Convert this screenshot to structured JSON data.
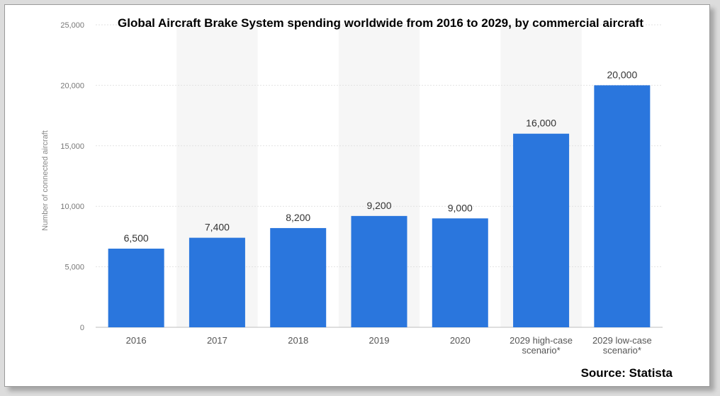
{
  "chart_data": {
    "type": "bar",
    "title": "Global Aircraft Brake System spending worldwide from 2016 to 2029, by commercial aircraft",
    "ylabel": "Number of connected aircraft",
    "xlabel": "",
    "source": "Source: Statista",
    "categories": [
      [
        "2016"
      ],
      [
        "2017"
      ],
      [
        "2018"
      ],
      [
        "2019"
      ],
      [
        "2020"
      ],
      [
        "2029 high-case",
        "scenario*"
      ],
      [
        "2029 low-case",
        "scenario*"
      ]
    ],
    "values": [
      6500,
      7400,
      8200,
      9200,
      9000,
      16000,
      20000
    ],
    "data_labels": [
      "6,500",
      "7,400",
      "8,200",
      "9,200",
      "9,000",
      "16,000",
      "20,000"
    ],
    "ylim": [
      0,
      25000
    ],
    "yticks": [
      0,
      5000,
      10000,
      15000,
      20000,
      25000
    ],
    "ytick_labels": [
      "0",
      "5,000",
      "10,000",
      "15,000",
      "20,000",
      "25,000"
    ],
    "grid": true,
    "bar_color": "#2a76dd",
    "band_color": "#f6f6f6"
  }
}
